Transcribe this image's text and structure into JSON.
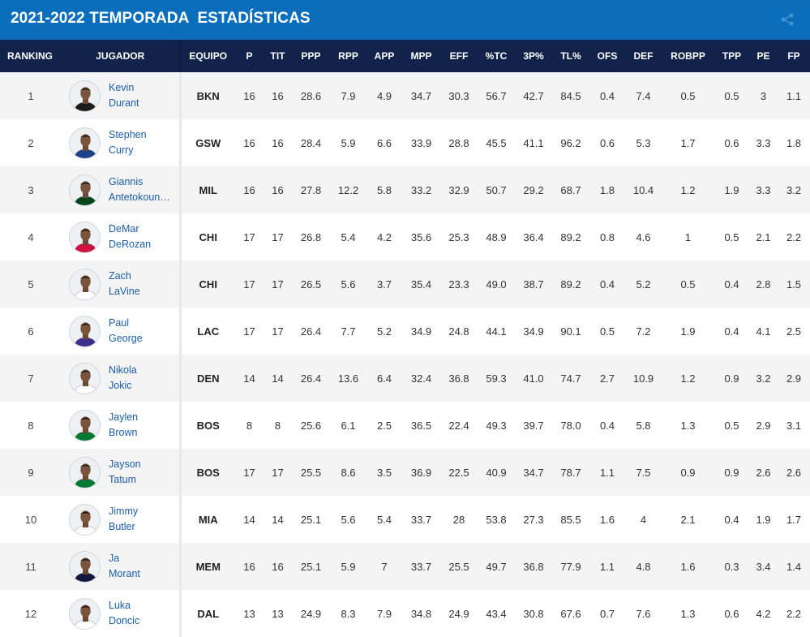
{
  "page": {
    "title": "2021-2022 TEMPORADA  ESTADÍSTICAS",
    "corner_icon": "share-icon"
  },
  "colors": {
    "title_bar": "#0a6ebd",
    "header_row": "#11234b",
    "player_link": "#1a5ea8",
    "row_alt": "#f4f4f4"
  },
  "table": {
    "columns": [
      "RANKING",
      "JUGADOR",
      "EQUIPO",
      "P",
      "TIT",
      "PPP",
      "RPP",
      "APP",
      "MPP",
      "EFF",
      "%TC",
      "3P%",
      "TL%",
      "OFS",
      "DEF",
      "ROBPP",
      "TPP",
      "PE",
      "FP"
    ],
    "rows": [
      {
        "rank": "1",
        "first": "Kevin",
        "last": "Durant",
        "team": "BKN",
        "stats": [
          "16",
          "16",
          "28.6",
          "7.9",
          "4.9",
          "34.7",
          "30.3",
          "56.7",
          "42.7",
          "84.5",
          "0.4",
          "7.4",
          "0.5",
          "0.5",
          "3",
          "1.1"
        ],
        "jersey": "#1b1b1b"
      },
      {
        "rank": "2",
        "first": "Stephen",
        "last": "Curry",
        "team": "GSW",
        "stats": [
          "16",
          "16",
          "28.4",
          "5.9",
          "6.6",
          "33.9",
          "28.8",
          "45.5",
          "41.1",
          "96.2",
          "0.6",
          "5.3",
          "1.7",
          "0.6",
          "3.3",
          "1.8"
        ],
        "jersey": "#1d428a"
      },
      {
        "rank": "3",
        "first": "Giannis",
        "last": "Antetokounmpo",
        "team": "MIL",
        "stats": [
          "16",
          "16",
          "27.8",
          "12.2",
          "5.8",
          "33.2",
          "32.9",
          "50.7",
          "29.2",
          "68.7",
          "1.8",
          "10.4",
          "1.2",
          "1.9",
          "3.3",
          "3.2"
        ],
        "jersey": "#00471b"
      },
      {
        "rank": "4",
        "first": "DeMar",
        "last": "DeRozan",
        "team": "CHI",
        "stats": [
          "17",
          "17",
          "26.8",
          "5.4",
          "4.2",
          "35.6",
          "25.3",
          "48.9",
          "36.4",
          "89.2",
          "0.8",
          "4.6",
          "1",
          "0.5",
          "2.1",
          "2.2"
        ],
        "jersey": "#ce1141"
      },
      {
        "rank": "5",
        "first": "Zach",
        "last": "LaVine",
        "team": "CHI",
        "stats": [
          "17",
          "17",
          "26.5",
          "5.6",
          "3.7",
          "35.4",
          "23.3",
          "49.0",
          "38.7",
          "89.2",
          "0.4",
          "5.2",
          "0.5",
          "0.4",
          "2.8",
          "1.5"
        ],
        "jersey": "#ffffff"
      },
      {
        "rank": "6",
        "first": "Paul",
        "last": "George",
        "team": "LAC",
        "stats": [
          "17",
          "17",
          "26.4",
          "7.7",
          "5.2",
          "34.9",
          "24.8",
          "44.1",
          "34.9",
          "90.1",
          "0.5",
          "7.2",
          "1.9",
          "0.4",
          "4.1",
          "2.5"
        ],
        "jersey": "#3a2f8c"
      },
      {
        "rank": "7",
        "first": "Nikola",
        "last": "Jokic",
        "team": "DEN",
        "stats": [
          "14",
          "14",
          "26.4",
          "13.6",
          "6.4",
          "32.4",
          "36.8",
          "59.3",
          "41.0",
          "74.7",
          "2.7",
          "10.9",
          "1.2",
          "0.9",
          "3.2",
          "2.9"
        ],
        "jersey": "#ffffff"
      },
      {
        "rank": "8",
        "first": "Jaylen",
        "last": "Brown",
        "team": "BOS",
        "stats": [
          "8",
          "8",
          "25.6",
          "6.1",
          "2.5",
          "36.5",
          "22.4",
          "49.3",
          "39.7",
          "78.0",
          "0.4",
          "5.8",
          "1.3",
          "0.5",
          "2.9",
          "3.1"
        ],
        "jersey": "#007a33"
      },
      {
        "rank": "9",
        "first": "Jayson",
        "last": "Tatum",
        "team": "BOS",
        "stats": [
          "17",
          "17",
          "25.5",
          "8.6",
          "3.5",
          "36.9",
          "22.5",
          "40.9",
          "34.7",
          "78.7",
          "1.1",
          "7.5",
          "0.9",
          "0.9",
          "2.6",
          "2.6"
        ],
        "jersey": "#007a33"
      },
      {
        "rank": "10",
        "first": "Jimmy",
        "last": "Butler",
        "team": "MIA",
        "stats": [
          "14",
          "14",
          "25.1",
          "5.6",
          "5.4",
          "33.7",
          "28",
          "53.8",
          "27.3",
          "85.5",
          "1.6",
          "4",
          "2.1",
          "0.4",
          "1.9",
          "1.7"
        ],
        "jersey": "#ffffff"
      },
      {
        "rank": "11",
        "first": "Ja",
        "last": "Morant",
        "team": "MEM",
        "stats": [
          "16",
          "16",
          "25.1",
          "5.9",
          "7",
          "33.7",
          "25.5",
          "49.7",
          "36.8",
          "77.9",
          "1.1",
          "4.8",
          "1.6",
          "0.3",
          "3.4",
          "1.4"
        ],
        "jersey": "#12173f"
      },
      {
        "rank": "12",
        "first": "Luka",
        "last": "Doncic",
        "team": "DAL",
        "stats": [
          "13",
          "13",
          "24.9",
          "8.3",
          "7.9",
          "34.8",
          "24.9",
          "43.4",
          "30.8",
          "67.6",
          "0.7",
          "7.6",
          "1.3",
          "0.6",
          "4.2",
          "2.2"
        ],
        "jersey": "#ffffff"
      }
    ]
  }
}
